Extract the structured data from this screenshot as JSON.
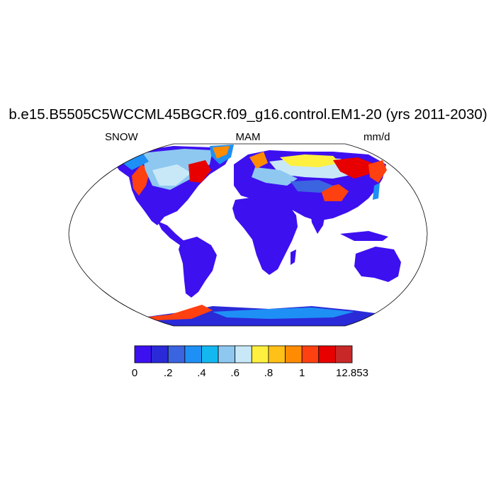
{
  "figure": {
    "title": "b.e15.B5505C5WCCML45BGCR.f09_g16.control.EM1-20 (yrs 2011-2030)",
    "left_label": "SNOW",
    "center_label": "MAM",
    "right_label": "mm/d"
  },
  "map": {
    "projection": "Robinson",
    "variable": "SNOW",
    "season": "MAM",
    "units": "mm/d",
    "ocean_color": "#ffffff"
  },
  "colorbar": {
    "colors": [
      "#3d10f0",
      "#2a2ad8",
      "#3b64e0",
      "#1e90f5",
      "#14b8f0",
      "#8ec8f0",
      "#c8e8f8",
      "#fff040",
      "#ffc018",
      "#ff8c00",
      "#ff4010",
      "#e80000",
      "#c82828"
    ],
    "tick_labels": [
      "0",
      ".2",
      ".4",
      ".6",
      ".8",
      "1",
      "12.853"
    ]
  }
}
